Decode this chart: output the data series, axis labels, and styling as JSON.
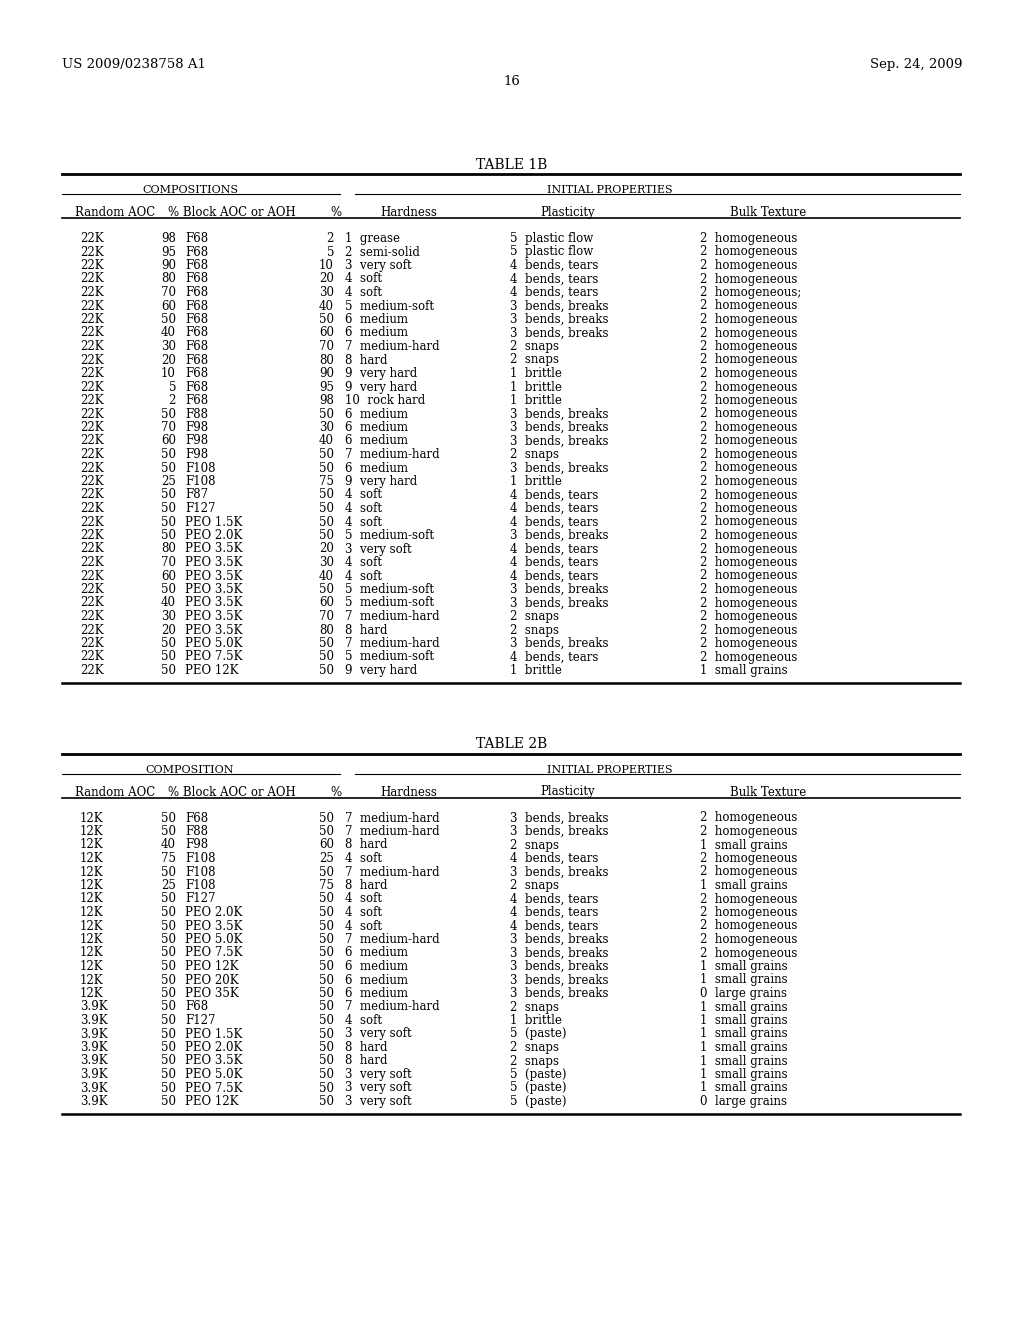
{
  "header_left": "US 2009/0238758 A1",
  "header_right": "Sep. 24, 2009",
  "page_number": "16",
  "table1_title": "TABLE 1B",
  "table1_comp_header": "COMPOSITIONS",
  "table1_prop_header": "INITIAL PROPERTIES",
  "table2_title": "TABLE 2B",
  "table2_comp_header": "COMPOSITION",
  "table2_prop_header": "INITIAL PROPERTIES",
  "table1_rows": [
    [
      "22K",
      "98",
      "F68",
      "2",
      "1  grease",
      "5  plastic flow",
      "2  homogeneous"
    ],
    [
      "22K",
      "95",
      "F68",
      "5",
      "2  semi-solid",
      "5  plastic flow",
      "2  homogeneous"
    ],
    [
      "22K",
      "90",
      "F68",
      "10",
      "3  very soft",
      "4  bends, tears",
      "2  homogeneous"
    ],
    [
      "22K",
      "80",
      "F68",
      "20",
      "4  soft",
      "4  bends, tears",
      "2  homogeneous"
    ],
    [
      "22K",
      "70",
      "F68",
      "30",
      "4  soft",
      "4  bends, tears",
      "2  homogeneous;"
    ],
    [
      "22K",
      "60",
      "F68",
      "40",
      "5  medium-soft",
      "3  bends, breaks",
      "2  homogeneous"
    ],
    [
      "22K",
      "50",
      "F68",
      "50",
      "6  medium",
      "3  bends, breaks",
      "2  homogeneous"
    ],
    [
      "22K",
      "40",
      "F68",
      "60",
      "6  medium",
      "3  bends, breaks",
      "2  homogeneous"
    ],
    [
      "22K",
      "30",
      "F68",
      "70",
      "7  medium-hard",
      "2  snaps",
      "2  homogeneous"
    ],
    [
      "22K",
      "20",
      "F68",
      "80",
      "8  hard",
      "2  snaps",
      "2  homogeneous"
    ],
    [
      "22K",
      "10",
      "F68",
      "90",
      "9  very hard",
      "1  brittle",
      "2  homogeneous"
    ],
    [
      "22K",
      "5",
      "F68",
      "95",
      "9  very hard",
      "1  brittle",
      "2  homogeneous"
    ],
    [
      "22K",
      "2",
      "F68",
      "98",
      "10  rock hard",
      "1  brittle",
      "2  homogeneous"
    ],
    [
      "22K",
      "50",
      "F88",
      "50",
      "6  medium",
      "3  bends, breaks",
      "2  homogeneous"
    ],
    [
      "22K",
      "70",
      "F98",
      "30",
      "6  medium",
      "3  bends, breaks",
      "2  homogeneous"
    ],
    [
      "22K",
      "60",
      "F98",
      "40",
      "6  medium",
      "3  bends, breaks",
      "2  homogeneous"
    ],
    [
      "22K",
      "50",
      "F98",
      "50",
      "7  medium-hard",
      "2  snaps",
      "2  homogeneous"
    ],
    [
      "22K",
      "50",
      "F108",
      "50",
      "6  medium",
      "3  bends, breaks",
      "2  homogeneous"
    ],
    [
      "22K",
      "25",
      "F108",
      "75",
      "9  very hard",
      "1  brittle",
      "2  homogeneous"
    ],
    [
      "22K",
      "50",
      "F87",
      "50",
      "4  soft",
      "4  bends, tears",
      "2  homogeneous"
    ],
    [
      "22K",
      "50",
      "F127",
      "50",
      "4  soft",
      "4  bends, tears",
      "2  homogeneous"
    ],
    [
      "22K",
      "50",
      "PEO 1.5K",
      "50",
      "4  soft",
      "4  bends, tears",
      "2  homogeneous"
    ],
    [
      "22K",
      "50",
      "PEO 2.0K",
      "50",
      "5  medium-soft",
      "3  bends, breaks",
      "2  homogeneous"
    ],
    [
      "22K",
      "80",
      "PEO 3.5K",
      "20",
      "3  very soft",
      "4  bends, tears",
      "2  homogeneous"
    ],
    [
      "22K",
      "70",
      "PEO 3.5K",
      "30",
      "4  soft",
      "4  bends, tears",
      "2  homogeneous"
    ],
    [
      "22K",
      "60",
      "PEO 3.5K",
      "40",
      "4  soft",
      "4  bends, tears",
      "2  homogeneous"
    ],
    [
      "22K",
      "50",
      "PEO 3.5K",
      "50",
      "5  medium-soft",
      "3  bends, breaks",
      "2  homogeneous"
    ],
    [
      "22K",
      "40",
      "PEO 3.5K",
      "60",
      "5  medium-soft",
      "3  bends, breaks",
      "2  homogeneous"
    ],
    [
      "22K",
      "30",
      "PEO 3.5K",
      "70",
      "7  medium-hard",
      "2  snaps",
      "2  homogeneous"
    ],
    [
      "22K",
      "20",
      "PEO 3.5K",
      "80",
      "8  hard",
      "2  snaps",
      "2  homogeneous"
    ],
    [
      "22K",
      "50",
      "PEO 5.0K",
      "50",
      "7  medium-hard",
      "3  bends, breaks",
      "2  homogeneous"
    ],
    [
      "22K",
      "50",
      "PEO 7.5K",
      "50",
      "5  medium-soft",
      "4  bends, tears",
      "2  homogeneous"
    ],
    [
      "22K",
      "50",
      "PEO 12K",
      "50",
      "9  very hard",
      "1  brittle",
      "1  small grains"
    ]
  ],
  "table2_rows": [
    [
      "12K",
      "50",
      "F68",
      "50",
      "7  medium-hard",
      "3  bends, breaks",
      "2  homogeneous"
    ],
    [
      "12K",
      "50",
      "F88",
      "50",
      "7  medium-hard",
      "3  bends, breaks",
      "2  homogeneous"
    ],
    [
      "12K",
      "40",
      "F98",
      "60",
      "8  hard",
      "2  snaps",
      "1  small grains"
    ],
    [
      "12K",
      "75",
      "F108",
      "25",
      "4  soft",
      "4  bends, tears",
      "2  homogeneous"
    ],
    [
      "12K",
      "50",
      "F108",
      "50",
      "7  medium-hard",
      "3  bends, breaks",
      "2  homogeneous"
    ],
    [
      "12K",
      "25",
      "F108",
      "75",
      "8  hard",
      "2  snaps",
      "1  small grains"
    ],
    [
      "12K",
      "50",
      "F127",
      "50",
      "4  soft",
      "4  bends, tears",
      "2  homogeneous"
    ],
    [
      "12K",
      "50",
      "PEO 2.0K",
      "50",
      "4  soft",
      "4  bends, tears",
      "2  homogeneous"
    ],
    [
      "12K",
      "50",
      "PEO 3.5K",
      "50",
      "4  soft",
      "4  bends, tears",
      "2  homogeneous"
    ],
    [
      "12K",
      "50",
      "PEO 5.0K",
      "50",
      "7  medium-hard",
      "3  bends, breaks",
      "2  homogeneous"
    ],
    [
      "12K",
      "50",
      "PEO 7.5K",
      "50",
      "6  medium",
      "3  bends, breaks",
      "2  homogeneous"
    ],
    [
      "12K",
      "50",
      "PEO 12K",
      "50",
      "6  medium",
      "3  bends, breaks",
      "1  small grains"
    ],
    [
      "12K",
      "50",
      "PEO 20K",
      "50",
      "6  medium",
      "3  bends, breaks",
      "1  small grains"
    ],
    [
      "12K",
      "50",
      "PEO 35K",
      "50",
      "6  medium",
      "3  bends, breaks",
      "0  large grains"
    ],
    [
      "3.9K",
      "50",
      "F68",
      "50",
      "7  medium-hard",
      "2  snaps",
      "1  small grains"
    ],
    [
      "3.9K",
      "50",
      "F127",
      "50",
      "4  soft",
      "1  brittle",
      "1  small grains"
    ],
    [
      "3.9K",
      "50",
      "PEO 1.5K",
      "50",
      "3  very soft",
      "5  (paste)",
      "1  small grains"
    ],
    [
      "3.9K",
      "50",
      "PEO 2.0K",
      "50",
      "8  hard",
      "2  snaps",
      "1  small grains"
    ],
    [
      "3.9K",
      "50",
      "PEO 3.5K",
      "50",
      "8  hard",
      "2  snaps",
      "1  small grains"
    ],
    [
      "3.9K",
      "50",
      "PEO 5.0K",
      "50",
      "3  very soft",
      "5  (paste)",
      "1  small grains"
    ],
    [
      "3.9K",
      "50",
      "PEO 7.5K",
      "50",
      "3  very soft",
      "5  (paste)",
      "1  small grains"
    ],
    [
      "3.9K",
      "50",
      "PEO 12K",
      "50",
      "3  very soft",
      "5  (paste)",
      "0  large grains"
    ]
  ]
}
